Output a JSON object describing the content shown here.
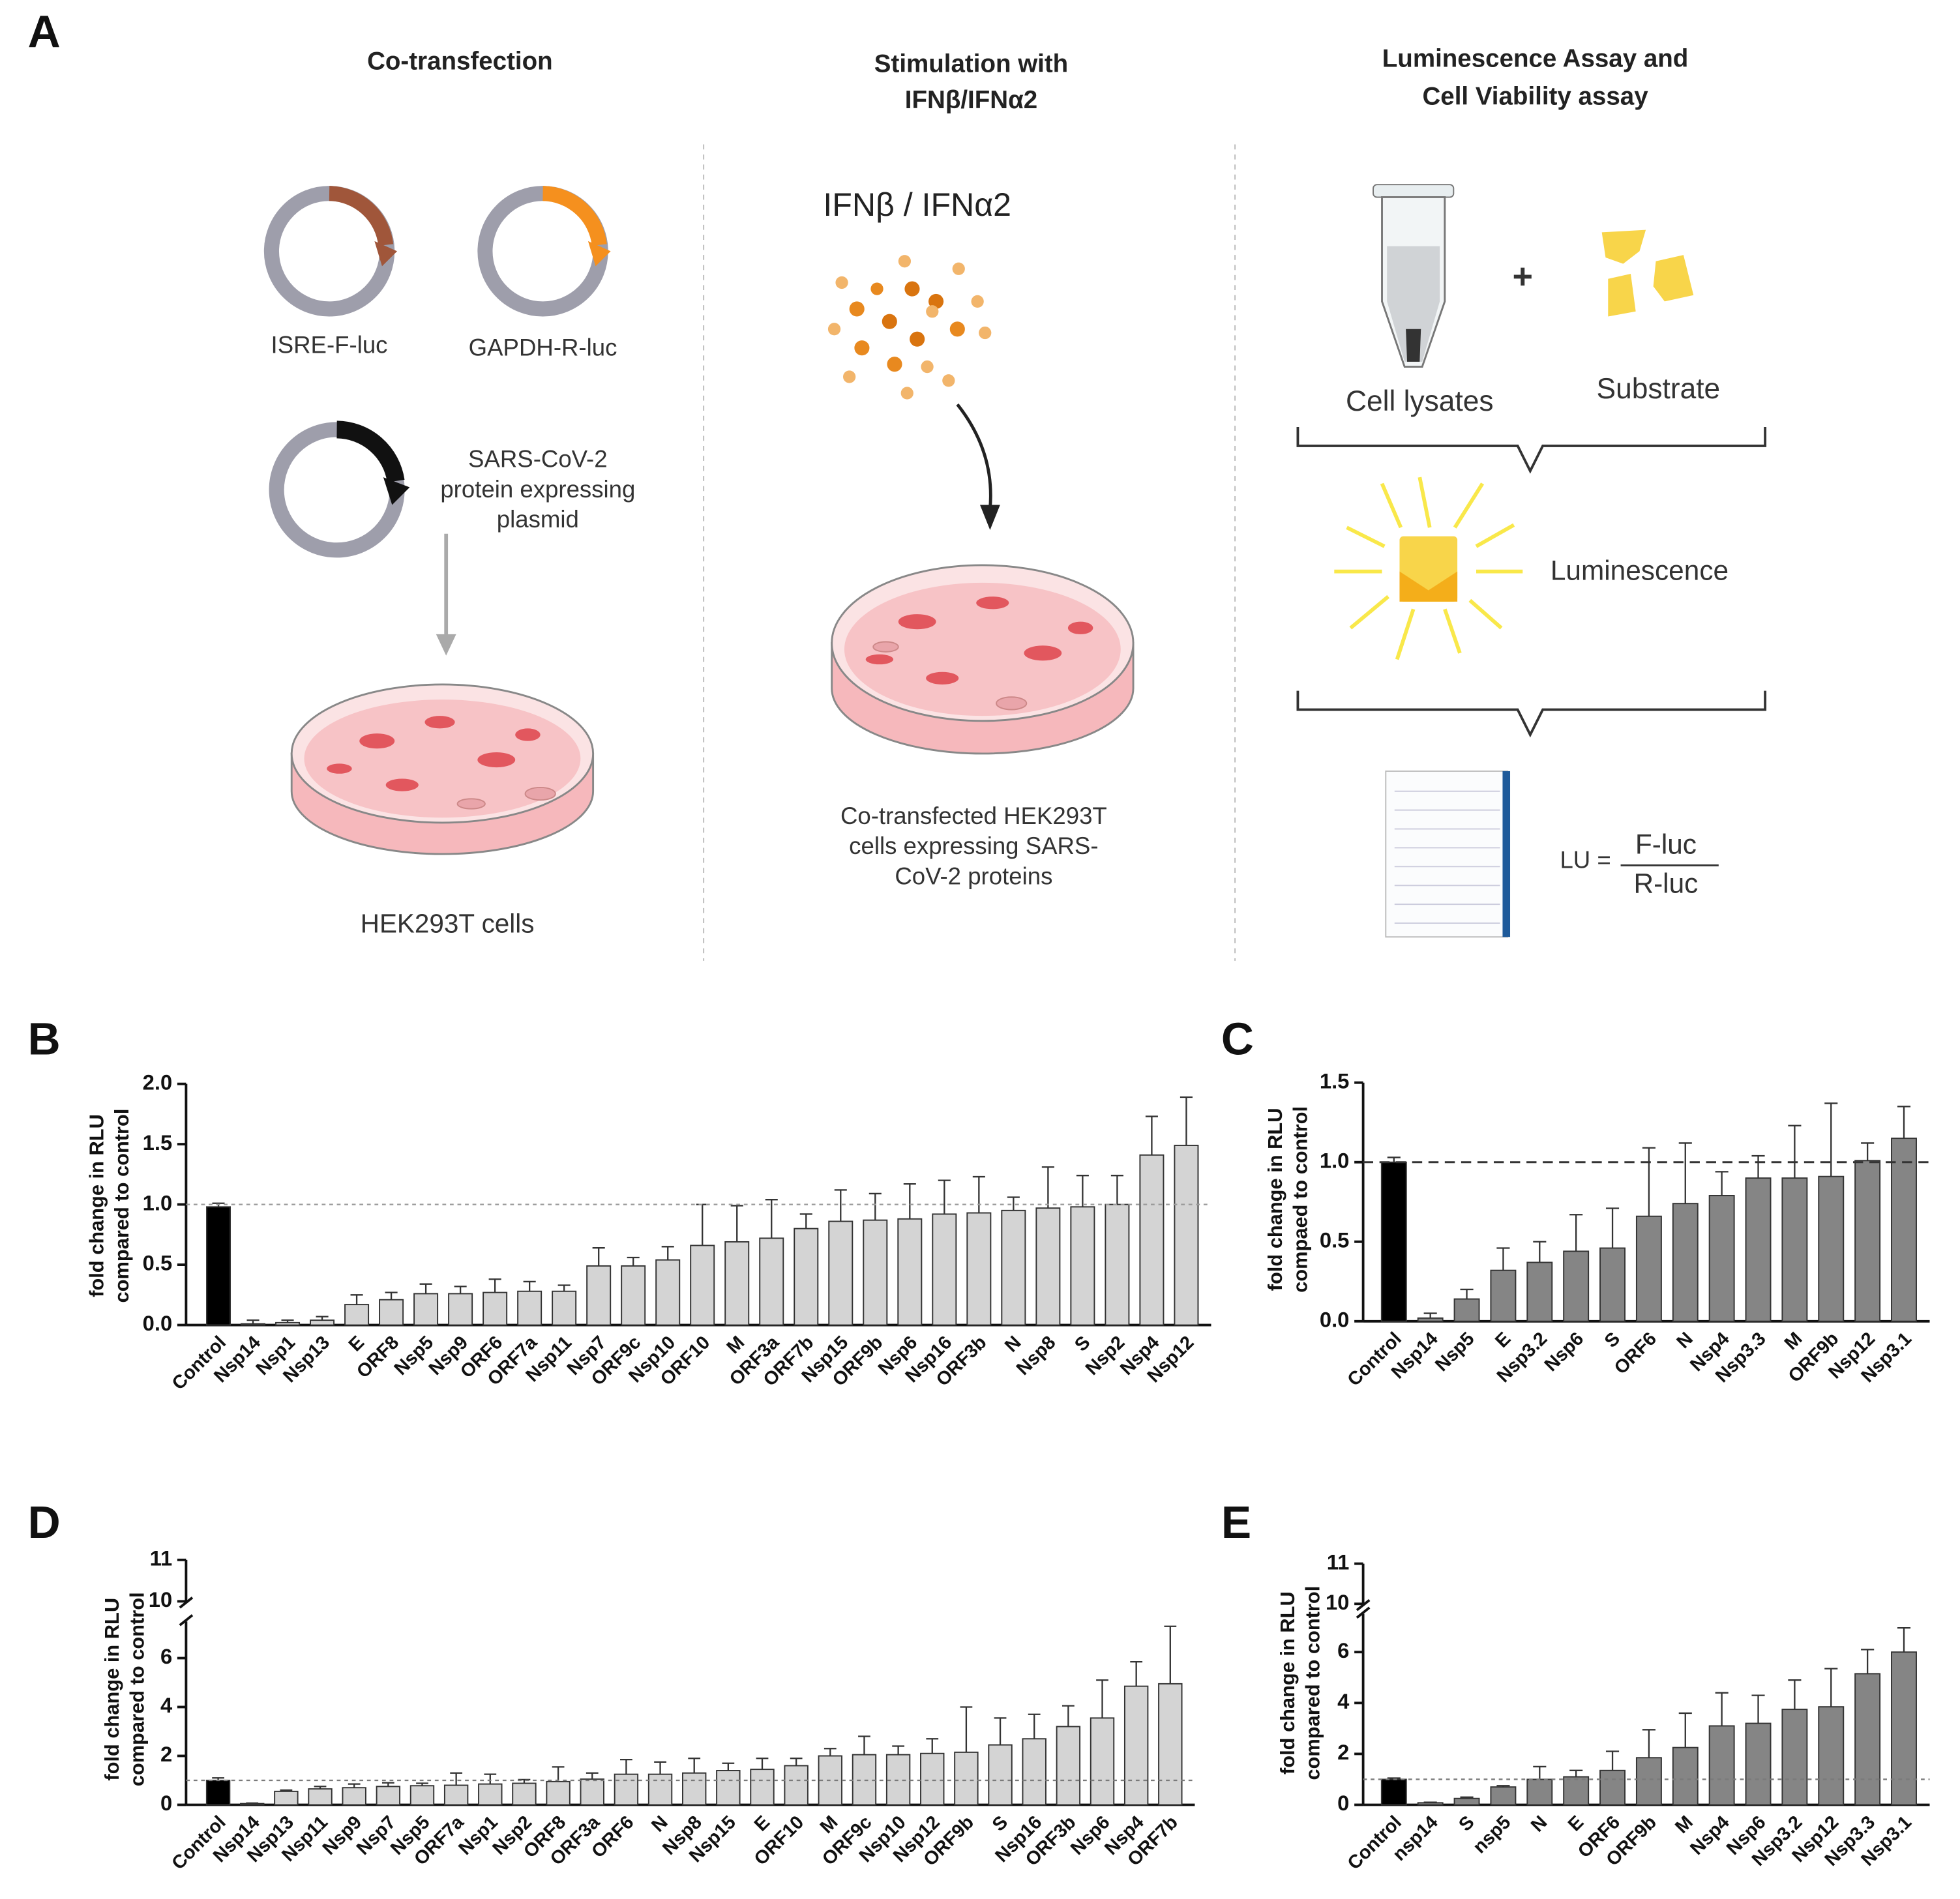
{
  "panel_a": {
    "label": "A",
    "title_1": "Co-transfection",
    "title_2": [
      "Stimulation with",
      "IFNβ/IFNα2"
    ],
    "title_3": [
      "Luminescence Assay and",
      "Cell Viability assay"
    ],
    "plasmid_1": "ISRE-F-luc",
    "plasmid_2": "GAPDH-R-luc",
    "plasmid_3": [
      "SARS-CoV-2",
      "protein expressing",
      "plasmid"
    ],
    "cells": "HEK293T cells",
    "stimulus": "IFNβ / IFNα2",
    "cells_2": [
      "Co-transfected HEK293T",
      "cells expressing SARS-",
      "CoV-2 proteins"
    ],
    "lysates": "Cell lysates",
    "plus": "+",
    "substrate": "Substrate",
    "luminescence": "Luminescence",
    "lu": "LU =",
    "numerator": "F-luc",
    "denominator": "R-luc"
  },
  "chart_data": [
    {
      "type": "bar",
      "panel": "B",
      "y_label": [
        "fold change in RLU",
        "compared to control"
      ],
      "categories": [
        "Control",
        "Nsp14",
        "Nsp1",
        "Nsp13",
        "E",
        "ORF8",
        "Nsp5",
        "Nsp9",
        "ORF6",
        "ORF7a",
        "Nsp11",
        "Nsp7",
        "ORF9c",
        "Nsp10",
        "ORF10",
        "M",
        "ORF3a",
        "ORF7b",
        "Nsp15",
        "ORF9b",
        "Nsp6",
        "Nsp16",
        "ORF3b",
        "N",
        "Nsp8",
        "S",
        "Nsp2",
        "Nsp4",
        "Nsp12"
      ],
      "values": [
        0.98,
        0.01,
        0.02,
        0.04,
        0.17,
        0.21,
        0.26,
        0.26,
        0.27,
        0.28,
        0.28,
        0.49,
        0.49,
        0.54,
        0.66,
        0.69,
        0.72,
        0.8,
        0.86,
        0.87,
        0.88,
        0.92,
        0.93,
        0.95,
        0.97,
        0.98,
        1.0,
        1.41,
        1.49
      ],
      "errors": [
        0.03,
        0.03,
        0.02,
        0.03,
        0.08,
        0.06,
        0.08,
        0.06,
        0.11,
        0.08,
        0.05,
        0.15,
        0.07,
        0.11,
        0.34,
        0.3,
        0.32,
        0.12,
        0.26,
        0.22,
        0.29,
        0.28,
        0.3,
        0.11,
        0.34,
        0.26,
        0.24,
        0.32,
        0.4
      ],
      "color": "#d4d4d4",
      "control_color": "#000000",
      "ylim": [
        0,
        2
      ],
      "yticks": [
        {
          "value": 0,
          "label": "0.0"
        },
        0.5,
        {
          "value": 1,
          "label": "1.0"
        },
        1.5,
        {
          "value": 2,
          "label": "2.0"
        }
      ],
      "reference_line": {
        "value": 1,
        "style": "dotted",
        "color": "#9a9a9a"
      }
    },
    {
      "type": "bar",
      "panel": "C",
      "y_label": [
        "fold change in RLU",
        "compaed to control"
      ],
      "categories": [
        "Control",
        "Nsp14",
        "Nsp5",
        "E",
        "Nsp3.2",
        "Nsp6",
        "S",
        "ORF6",
        "N",
        "Nsp4",
        "Nsp3.3",
        "M",
        "ORF9b",
        "Nsp12",
        "Nsp3.1"
      ],
      "values": [
        1.0,
        0.02,
        0.14,
        0.32,
        0.37,
        0.44,
        0.46,
        0.66,
        0.74,
        0.79,
        0.9,
        0.9,
        0.91,
        1.01,
        1.15
      ],
      "errors": [
        0.03,
        0.03,
        0.06,
        0.14,
        0.13,
        0.23,
        0.25,
        0.43,
        0.38,
        0.15,
        0.14,
        0.33,
        0.46,
        0.11,
        0.2
      ],
      "color": "#858585",
      "control_color": "#000000",
      "ylim": [
        0,
        1.5
      ],
      "yticks": [
        {
          "value": 0,
          "label": "0.0"
        },
        0.5,
        {
          "value": 1,
          "label": "1.0"
        },
        1.5
      ],
      "reference_line": {
        "value": 1,
        "style": "dashed",
        "color": "#333333"
      }
    },
    {
      "type": "bar",
      "panel": "D",
      "y_label": [
        "fold change in RLU",
        "compared to control"
      ],
      "categories": [
        "Control",
        "Nsp14",
        "Nsp13",
        "Nsp11",
        "Nsp9",
        "Nsp7",
        "Nsp5",
        "ORF7a",
        "Nsp1",
        "Nsp2",
        "ORF8",
        "ORF3a",
        "ORF6",
        "N",
        "Nsp8",
        "Nsp15",
        "E",
        "ORF10",
        "M",
        "ORF9c",
        "Nsp10",
        "Nsp12",
        "ORF9b",
        "S",
        "Nsp16",
        "ORF3b",
        "Nsp6",
        "Nsp4",
        "ORF7b"
      ],
      "values": [
        1.0,
        0.05,
        0.55,
        0.65,
        0.7,
        0.75,
        0.78,
        0.8,
        0.85,
        0.88,
        0.95,
        1.05,
        1.25,
        1.25,
        1.3,
        1.4,
        1.45,
        1.6,
        2.0,
        2.05,
        2.05,
        2.1,
        2.15,
        2.45,
        2.7,
        3.2,
        3.55,
        4.85,
        4.95
      ],
      "errors": [
        0.1,
        0.02,
        0.05,
        0.1,
        0.15,
        0.15,
        0.1,
        0.5,
        0.4,
        0.15,
        0.6,
        0.25,
        0.6,
        0.5,
        0.6,
        0.3,
        0.45,
        0.3,
        0.3,
        0.75,
        0.35,
        0.6,
        1.85,
        1.1,
        1.0,
        0.85,
        1.55,
        1.0,
        2.35
      ],
      "color": "#d4d4d4",
      "control_color": "#000000",
      "ylim": [
        0,
        7.5
      ],
      "yticks": [
        0,
        2,
        4,
        6
      ],
      "ylim_upper": [
        10,
        11
      ],
      "yticks_upper": [
        10,
        11
      ],
      "reference_line": {
        "value": 1,
        "style": "dotted",
        "color": "#7a7a7a"
      }
    },
    {
      "type": "bar",
      "panel": "E",
      "y_label": [
        "fold change in RLU",
        "compared to control"
      ],
      "categories": [
        "Control",
        "nsp14",
        "S",
        "nsp5",
        "N",
        "E",
        "ORF6",
        "ORF9b",
        "M",
        "Nsp4",
        "Nsp6",
        "Nsp3.2",
        "Nsp12",
        "Nsp3.3",
        "Nsp3.1"
      ],
      "values": [
        1.0,
        0.08,
        0.25,
        0.7,
        1.0,
        1.1,
        1.35,
        1.85,
        2.25,
        3.1,
        3.2,
        3.75,
        3.85,
        5.15,
        6.0
      ],
      "errors": [
        0.05,
        0.02,
        0.05,
        0.05,
        0.5,
        0.25,
        0.75,
        1.1,
        1.35,
        1.3,
        1.1,
        1.15,
        1.5,
        0.95,
        0.95
      ],
      "color": "#858585",
      "control_color": "#000000",
      "ylim": [
        0,
        7.5
      ],
      "yticks": [
        0,
        2,
        4,
        6
      ],
      "ylim_upper": [
        10,
        11
      ],
      "yticks_upper": [
        10,
        11
      ],
      "reference_line": {
        "value": 1,
        "style": "dotted",
        "color": "#7a7a7a"
      }
    }
  ]
}
